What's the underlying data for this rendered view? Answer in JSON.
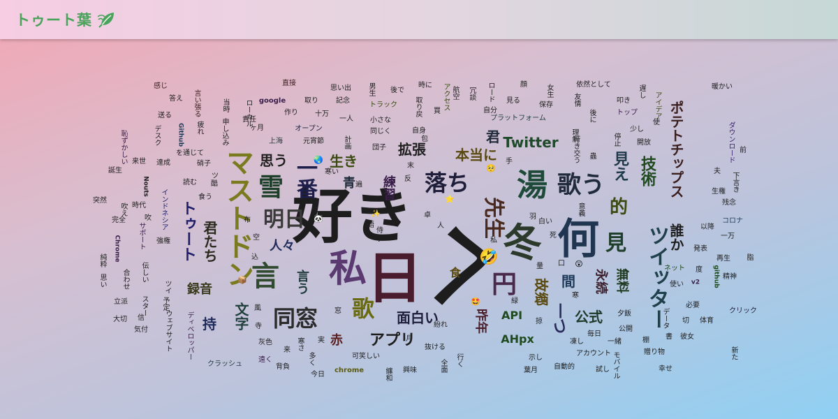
{
  "header": {
    "title": "トゥート葉"
  },
  "words": [
    {
      "t": "好き",
      "c": "#1d1d1d"
    },
    {
      "t": "へ",
      "c": "#1d1d1d"
    },
    {
      "t": "日",
      "c": "#4a1d2e"
    },
    {
      "t": "私",
      "c": "#5a3a70"
    },
    {
      "t": "冬",
      "c": "#2b3a2b"
    },
    {
      "t": "何",
      "c": "#1f3550"
    },
    {
      "t": "湯",
      "c": "#1f4a3a"
    },
    {
      "t": "言",
      "c": "#2f4a2f"
    },
    {
      "t": "マストドン",
      "c": "#7a7a1e"
    },
    {
      "t": "ツイッター",
      "c": "#1f3f4a"
    },
    {
      "t": "雪",
      "c": "#1e3f2a"
    },
    {
      "t": "歌う",
      "c": "#1f2a3a"
    },
    {
      "t": "明日",
      "c": "#3a3a3a"
    },
    {
      "t": "一番",
      "c": "#1e1e4a"
    },
    {
      "t": "同窓",
      "c": "#2b2b2b"
    },
    {
      "t": "落ち",
      "c": "#1e1e3a"
    },
    {
      "t": "先生",
      "c": "#4a2a1e"
    },
    {
      "t": "円",
      "c": "#4a2a4a"
    },
    {
      "t": "歌",
      "c": "#6a6a10"
    },
    {
      "t": "ポテトチップス",
      "c": "#3a1e1e"
    },
    {
      "t": "見",
      "c": "#1e3f2a"
    },
    {
      "t": "的",
      "c": "#3a4a10"
    },
    {
      "t": "見え",
      "c": "#1e3a4a"
    },
    {
      "t": "技術",
      "c": "#1e4a1e"
    },
    {
      "t": "トゥート",
      "c": "#1e1e6a"
    },
    {
      "t": "君たち",
      "c": "#2a2a1e"
    },
    {
      "t": "文字",
      "c": "#1e3f3a"
    },
    {
      "t": "永続",
      "c": "#3a1e2a"
    },
    {
      "t": "無料",
      "c": "#1e3a1e"
    },
    {
      "t": "故郷",
      "c": "#5a4a10"
    },
    {
      "t": "間",
      "c": "#1e3a5a"
    },
    {
      "t": "一つ",
      "c": "#2a2a5a"
    },
    {
      "t": "公式",
      "c": "#1e3a2a"
    },
    {
      "t": "アプリ",
      "c": "#1e1e1e"
    },
    {
      "t": "面白い",
      "c": "#1e1e3a"
    },
    {
      "t": "昨年",
      "c": "#4a1e2a"
    },
    {
      "t": "誰か",
      "c": "#1e1e1e"
    },
    {
      "t": "拡張",
      "c": "#1e1e1e"
    },
    {
      "t": "本当に",
      "c": "#5a4a10"
    },
    {
      "t": "Twitter",
      "c": "#1e4a2a"
    },
    {
      "t": "君",
      "c": "#1e2a3a"
    },
    {
      "t": "思う",
      "c": "#1e1e1e"
    },
    {
      "t": "生き",
      "c": "#3a4a10"
    },
    {
      "t": "青",
      "c": "#1e2a3a"
    },
    {
      "t": "練習",
      "c": "#3a1e4a"
    },
    {
      "t": "言う",
      "c": "#1e3a3a"
    },
    {
      "t": "人々",
      "c": "#1e2a5a"
    },
    {
      "t": "録音",
      "c": "#3a3a1e"
    },
    {
      "t": "持",
      "c": "#1e2a5a"
    },
    {
      "t": "赤",
      "c": "#5a1e1e"
    },
    {
      "t": "API",
      "c": "#1e4a1e"
    },
    {
      "t": "AHpx",
      "c": "#1e4a1e"
    },
    {
      "t": "食",
      "c": "#5a4a10"
    },
    {
      "t": "ローカル",
      "c": "#1e1e1e"
    },
    {
      "t": "トラック",
      "c": "#3a4a10"
    },
    {
      "t": "プラットフォーム",
      "c": "#1e3a3a"
    },
    {
      "t": "オープン",
      "c": "#1e1e3a"
    },
    {
      "t": "ダウンロード",
      "c": "#3a1e6a"
    },
    {
      "t": "インドネシア",
      "c": "#1e1e6a"
    },
    {
      "t": "クラッシュ",
      "c": "#1e3a3a"
    },
    {
      "t": "アカウント",
      "c": "#1e1e1e"
    },
    {
      "t": "chrome",
      "c": "#5a5a10"
    },
    {
      "t": "google",
      "c": "#3a1e4a"
    },
    {
      "t": "Chrome",
      "c": "#3a1e4a"
    },
    {
      "t": "github",
      "c": "#1e4a1e"
    },
    {
      "t": "Github",
      "c": "#1e3a5a"
    },
    {
      "t": "Nouts",
      "c": "#1e1e1e"
    },
    {
      "t": "依然として",
      "c": "#1e1e1e"
    },
    {
      "t": "思い出",
      "c": "#1e1e1e"
    },
    {
      "t": "アイデア",
      "c": "#3a4a10"
    },
    {
      "t": "サポート",
      "c": "#3a1e4a"
    },
    {
      "t": "ウェブサイト",
      "c": "#1e1e1e"
    },
    {
      "t": "ディベロッパー",
      "c": "#3a1e4a"
    },
    {
      "t": "自動的",
      "c": "#1e1e1e"
    },
    {
      "t": "贈り物",
      "c": "#1e1e1e"
    },
    {
      "t": "モバイル",
      "c": "#1e1e1e"
    },
    {
      "t": "ネット",
      "c": "#1e4a1e"
    },
    {
      "t": "コロナ",
      "c": "#1e3a5a"
    },
    {
      "t": "クリック",
      "c": "#1e1e3a"
    },
    {
      "t": "スター",
      "c": "#1e1e1e"
    },
    {
      "t": "可笑しい",
      "c": "#1e1e1e"
    },
    {
      "t": "今日",
      "c": "#1e1e1e"
    },
    {
      "t": "十万",
      "c": "#1e1e1e"
    },
    {
      "t": "元宵節",
      "c": "#1e1e1e"
    },
    {
      "t": "上海",
      "c": "#1e3a3a"
    },
    {
      "t": "感じ",
      "c": "#3a1e1e"
    },
    {
      "t": "答え",
      "c": "#1e1e1e"
    },
    {
      "t": "言い張る",
      "c": "#3a1e1e"
    },
    {
      "t": "送る",
      "c": "#1e1e1e"
    },
    {
      "t": "恥ずかしい",
      "c": "#3a1e4a"
    },
    {
      "t": "誕生",
      "c": "#1e1e1e"
    },
    {
      "t": "達成",
      "c": "#1e1e1e"
    },
    {
      "t": "来世",
      "c": "#1e1e1e"
    },
    {
      "t": "時代",
      "c": "#1e1e1e"
    },
    {
      "t": "完全",
      "c": "#1e1e1e"
    },
    {
      "t": "大切",
      "c": "#1e1e1e"
    },
    {
      "t": "気付",
      "c": "#1e1e1e"
    },
    {
      "t": "立派",
      "c": "#1e1e1e"
    },
    {
      "t": "純粋",
      "c": "#1e1e1e"
    },
    {
      "t": "直接",
      "c": "#3a1e1e"
    },
    {
      "t": "取り",
      "c": "#1e1e1e"
    },
    {
      "t": "作り",
      "c": "#1e1e1e"
    },
    {
      "t": "一人",
      "c": "#1e1e1e"
    },
    {
      "t": "小さな",
      "c": "#1e1e1e"
    },
    {
      "t": "同じく",
      "c": "#1e1e1e"
    },
    {
      "t": "自身",
      "c": "#1e1e1e"
    },
    {
      "t": "男生",
      "c": "#1e1e1e"
    },
    {
      "t": "後で",
      "c": "#1e1e1e"
    },
    {
      "t": "時に",
      "c": "#1e1e1e"
    },
    {
      "t": "自分",
      "c": "#1e1e1e"
    },
    {
      "t": "保存",
      "c": "#1e1e1e"
    },
    {
      "t": "友情",
      "c": "#1e1e1e"
    },
    {
      "t": "トップ",
      "c": "#3a1e4a"
    },
    {
      "t": "少し",
      "c": "#1e1e1e"
    },
    {
      "t": "開放",
      "c": "#1e1e1e"
    },
    {
      "t": "暖かい",
      "c": "#1e1e1e"
    },
    {
      "t": "前",
      "c": "#1e1e1e"
    },
    {
      "t": "残念",
      "c": "#1e1e1e"
    },
    {
      "t": "再生",
      "c": "#1e1e1e"
    },
    {
      "t": "以降",
      "c": "#1e1e1e"
    },
    {
      "t": "発表",
      "c": "#1e1e1e"
    },
    {
      "t": "一万",
      "c": "#1e1e1e"
    },
    {
      "t": "v2",
      "c": "#3a1e4a"
    },
    {
      "t": "必要",
      "c": "#1e1e1e"
    },
    {
      "t": "精神",
      "c": "#1e1e1e"
    },
    {
      "t": "公開",
      "c": "#1e1e1e"
    },
    {
      "t": "一緒",
      "c": "#1e1e1e"
    },
    {
      "t": "試し",
      "c": "#1e1e1e"
    },
    {
      "t": "幸せ",
      "c": "#1e1e1e"
    },
    {
      "t": "新た",
      "c": "#1e1e1e"
    },
    {
      "t": "体育",
      "c": "#1e1e1e"
    },
    {
      "t": "夕飯",
      "c": "#1e1e1e"
    },
    {
      "t": "抜ける",
      "c": "#1e1e1e"
    },
    {
      "t": "行く",
      "c": "#1e1e1e"
    },
    {
      "t": "全面",
      "c": "#1e1e1e"
    },
    {
      "t": "灰色",
      "c": "#1e1e1e"
    },
    {
      "t": "来",
      "c": "#1e1e1e"
    },
    {
      "t": "多く",
      "c": "#1e1e1e"
    },
    {
      "t": "遠く",
      "c": "#3a1e4a"
    },
    {
      "t": "背負",
      "c": "#1e1e1e"
    },
    {
      "t": "興味",
      "c": "#1e1e1e"
    },
    {
      "t": "纏和",
      "c": "#1e1e1e"
    },
    {
      "t": "寒さ",
      "c": "#1e1e1e"
    },
    {
      "t": "紛れ",
      "c": "#1e1e1e"
    },
    {
      "t": "包",
      "c": "#1e1e1e"
    },
    {
      "t": "責任",
      "c": "#1e1e1e"
    },
    {
      "t": "当時",
      "c": "#1e1e1e"
    },
    {
      "t": "申し込み",
      "c": "#1e1e1e"
    },
    {
      "t": "疲れ",
      "c": "#1e1e1e"
    },
    {
      "t": "ヶ月",
      "c": "#1e1e1e"
    },
    {
      "t": "を通じて",
      "c": "#1e1e1e"
    },
    {
      "t": "硝子",
      "c": "#1e1e1e"
    },
    {
      "t": "デスク",
      "c": "#1e1e1e"
    },
    {
      "t": "寒い",
      "c": "#1e1e1e"
    },
    {
      "t": "アクセス",
      "c": "#3a4a10"
    },
    {
      "t": "行き交う",
      "c": "#1e1e1e"
    },
    {
      "t": "理解",
      "c": "#1e1e1e"
    },
    {
      "t": "停止",
      "c": "#1e1e1e"
    },
    {
      "t": "叩き",
      "c": "#1e1e1e"
    },
    {
      "t": "遅し",
      "c": "#1e1e1e"
    },
    {
      "t": "使",
      "c": "#1e1e1e"
    },
    {
      "t": "顔",
      "c": "#1e1e1e"
    },
    {
      "t": "女生",
      "c": "#1e1e1e"
    },
    {
      "t": "後に",
      "c": "#1e1e1e"
    },
    {
      "t": "見る",
      "c": "#1e1e1e"
    },
    {
      "t": "ロード",
      "c": "#1e1e1e"
    },
    {
      "t": "冗談",
      "c": "#1e1e1e"
    },
    {
      "t": "航空",
      "c": "#1e1e1e"
    },
    {
      "t": "買",
      "c": "#1e1e1e"
    },
    {
      "t": "取り戻",
      "c": "#1e1e1e"
    },
    {
      "t": "記念",
      "c": "#1e1e1e"
    },
    {
      "t": "計画",
      "c": "#1e1e1e"
    },
    {
      "t": "団子",
      "c": "#1e1e1e"
    },
    {
      "t": "強権",
      "c": "#1e1e1e"
    },
    {
      "t": "吹",
      "c": "#1e1e1e"
    },
    {
      "t": "合わせ",
      "c": "#1e1e1e"
    },
    {
      "t": "思い",
      "c": "#1e1e1e"
    },
    {
      "t": "ツイ",
      "c": "#1e1e1e"
    },
    {
      "t": "予定",
      "c": "#1e1e1e"
    },
    {
      "t": "伝しい",
      "c": "#1e1e1e"
    },
    {
      "t": "データ",
      "c": "#1e1e1e"
    },
    {
      "t": "夫",
      "c": "#1e1e1e"
    },
    {
      "t": "下言き",
      "c": "#1e1e1e"
    },
    {
      "t": "生権",
      "c": "#1e1e1e"
    },
    {
      "t": "脂",
      "c": "#1e1e1e"
    },
    {
      "t": "吹え",
      "c": "#1e1e1e"
    },
    {
      "t": "突然",
      "c": "#1e1e1e"
    },
    {
      "t": "布",
      "c": "#1e1e1e"
    },
    {
      "t": "空",
      "c": "#1e1e1e"
    },
    {
      "t": "込",
      "c": "#1e1e1e"
    },
    {
      "t": "風",
      "c": "#1e1e1e"
    },
    {
      "t": "窓",
      "c": "#1e1e1e"
    },
    {
      "t": "手",
      "c": "#1e1e1e"
    },
    {
      "t": "死",
      "c": "#1e1e1e"
    },
    {
      "t": "白い",
      "c": "#1e1e1e"
    },
    {
      "t": "羽",
      "c": "#1e1e1e"
    },
    {
      "t": "口",
      "c": "#1e1e1e"
    },
    {
      "t": "寒",
      "c": "#1e1e1e"
    },
    {
      "t": "掠",
      "c": "#1e1e1e"
    },
    {
      "t": "示し",
      "c": "#1e1e1e"
    },
    {
      "t": "葉月",
      "c": "#1e1e1e"
    },
    {
      "t": "毎日",
      "c": "#1e1e1e"
    },
    {
      "t": "凍し",
      "c": "#1e1e1e"
    },
    {
      "t": "書",
      "c": "#1e1e1e"
    },
    {
      "t": "切",
      "c": "#1e1e1e"
    },
    {
      "t": "彼女",
      "c": "#1e1e1e"
    },
    {
      "t": "棚",
      "c": "#1e1e1e"
    },
    {
      "t": "使い",
      "c": "#1e1e1e"
    },
    {
      "t": "度",
      "c": "#1e1e1e"
    },
    {
      "t": "私",
      "c": "#1e1e1e"
    },
    {
      "t": "人",
      "c": "#1e1e1e"
    },
    {
      "t": "遍",
      "c": "#1e1e1e"
    },
    {
      "t": "反",
      "c": "#1e1e1e"
    },
    {
      "t": "末",
      "c": "#1e1e1e"
    },
    {
      "t": "月",
      "c": "#1e1e1e"
    },
    {
      "t": "実",
      "c": "#1e1e1e"
    },
    {
      "t": "信",
      "c": "#1e1e1e"
    },
    {
      "t": "緑",
      "c": "#1e1e1e"
    },
    {
      "t": "意義",
      "c": "#1e1e1e"
    },
    {
      "t": "蟲",
      "c": "#1e1e1e"
    },
    {
      "t": "量",
      "c": "#1e1e1e"
    },
    {
      "t": "寺",
      "c": "#1e1e1e"
    },
    {
      "t": "卓",
      "c": "#1e1e1e"
    },
    {
      "t": "ツ",
      "c": "#1e1e1e"
    },
    {
      "t": "読む",
      "c": "#1e1e1e"
    },
    {
      "t": "食う",
      "c": "#1e1e1e"
    },
    {
      "t": "酷",
      "c": "#1e1e1e"
    },
    {
      "t": "侍",
      "c": "#1e1e1e"
    },
    {
      "t": "語",
      "c": "#1e1e1e"
    },
    {
      "t": "リ",
      "c": "#1e1e1e"
    },
    {
      "t": "省",
      "c": "#1e1e1e"
    },
    {
      "t": "協",
      "c": "#1e1e1e"
    }
  ],
  "emojis": [
    "🌏",
    "🥺",
    "🤣",
    "⭐",
    "😲",
    "🤩",
    "📦",
    "🐼",
    "✨"
  ]
}
